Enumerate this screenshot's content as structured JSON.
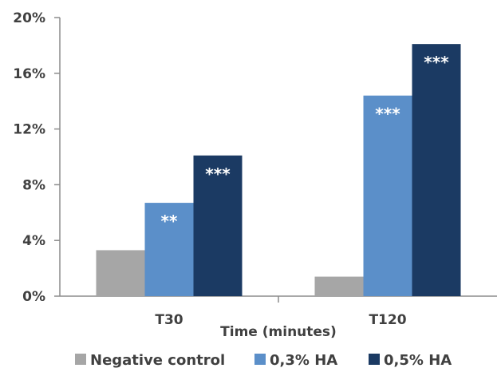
{
  "chart_data": {
    "type": "bar",
    "categories": [
      "T30",
      "T120"
    ],
    "series": [
      {
        "name": "Negative control",
        "color": "#a6a6a6",
        "values": [
          3.3,
          1.4
        ],
        "labels": [
          "",
          ""
        ]
      },
      {
        "name": "0,3% HA",
        "color": "#5b8fc9",
        "values": [
          6.7,
          14.4
        ],
        "labels": [
          "**",
          "***"
        ]
      },
      {
        "name": "0,5% HA",
        "color": "#1b3a63",
        "values": [
          10.1,
          18.1
        ],
        "labels": [
          "***",
          "***"
        ]
      }
    ],
    "xlabel": "Time (minutes)",
    "ylabel": "",
    "ylim": [
      0,
      20
    ],
    "yticks": [
      0,
      4,
      8,
      12,
      16,
      20
    ],
    "ytick_labels": [
      "0%",
      "4%",
      "8%",
      "12%",
      "16%",
      "20%"
    ],
    "grid": false,
    "legend_position": "bottom"
  }
}
